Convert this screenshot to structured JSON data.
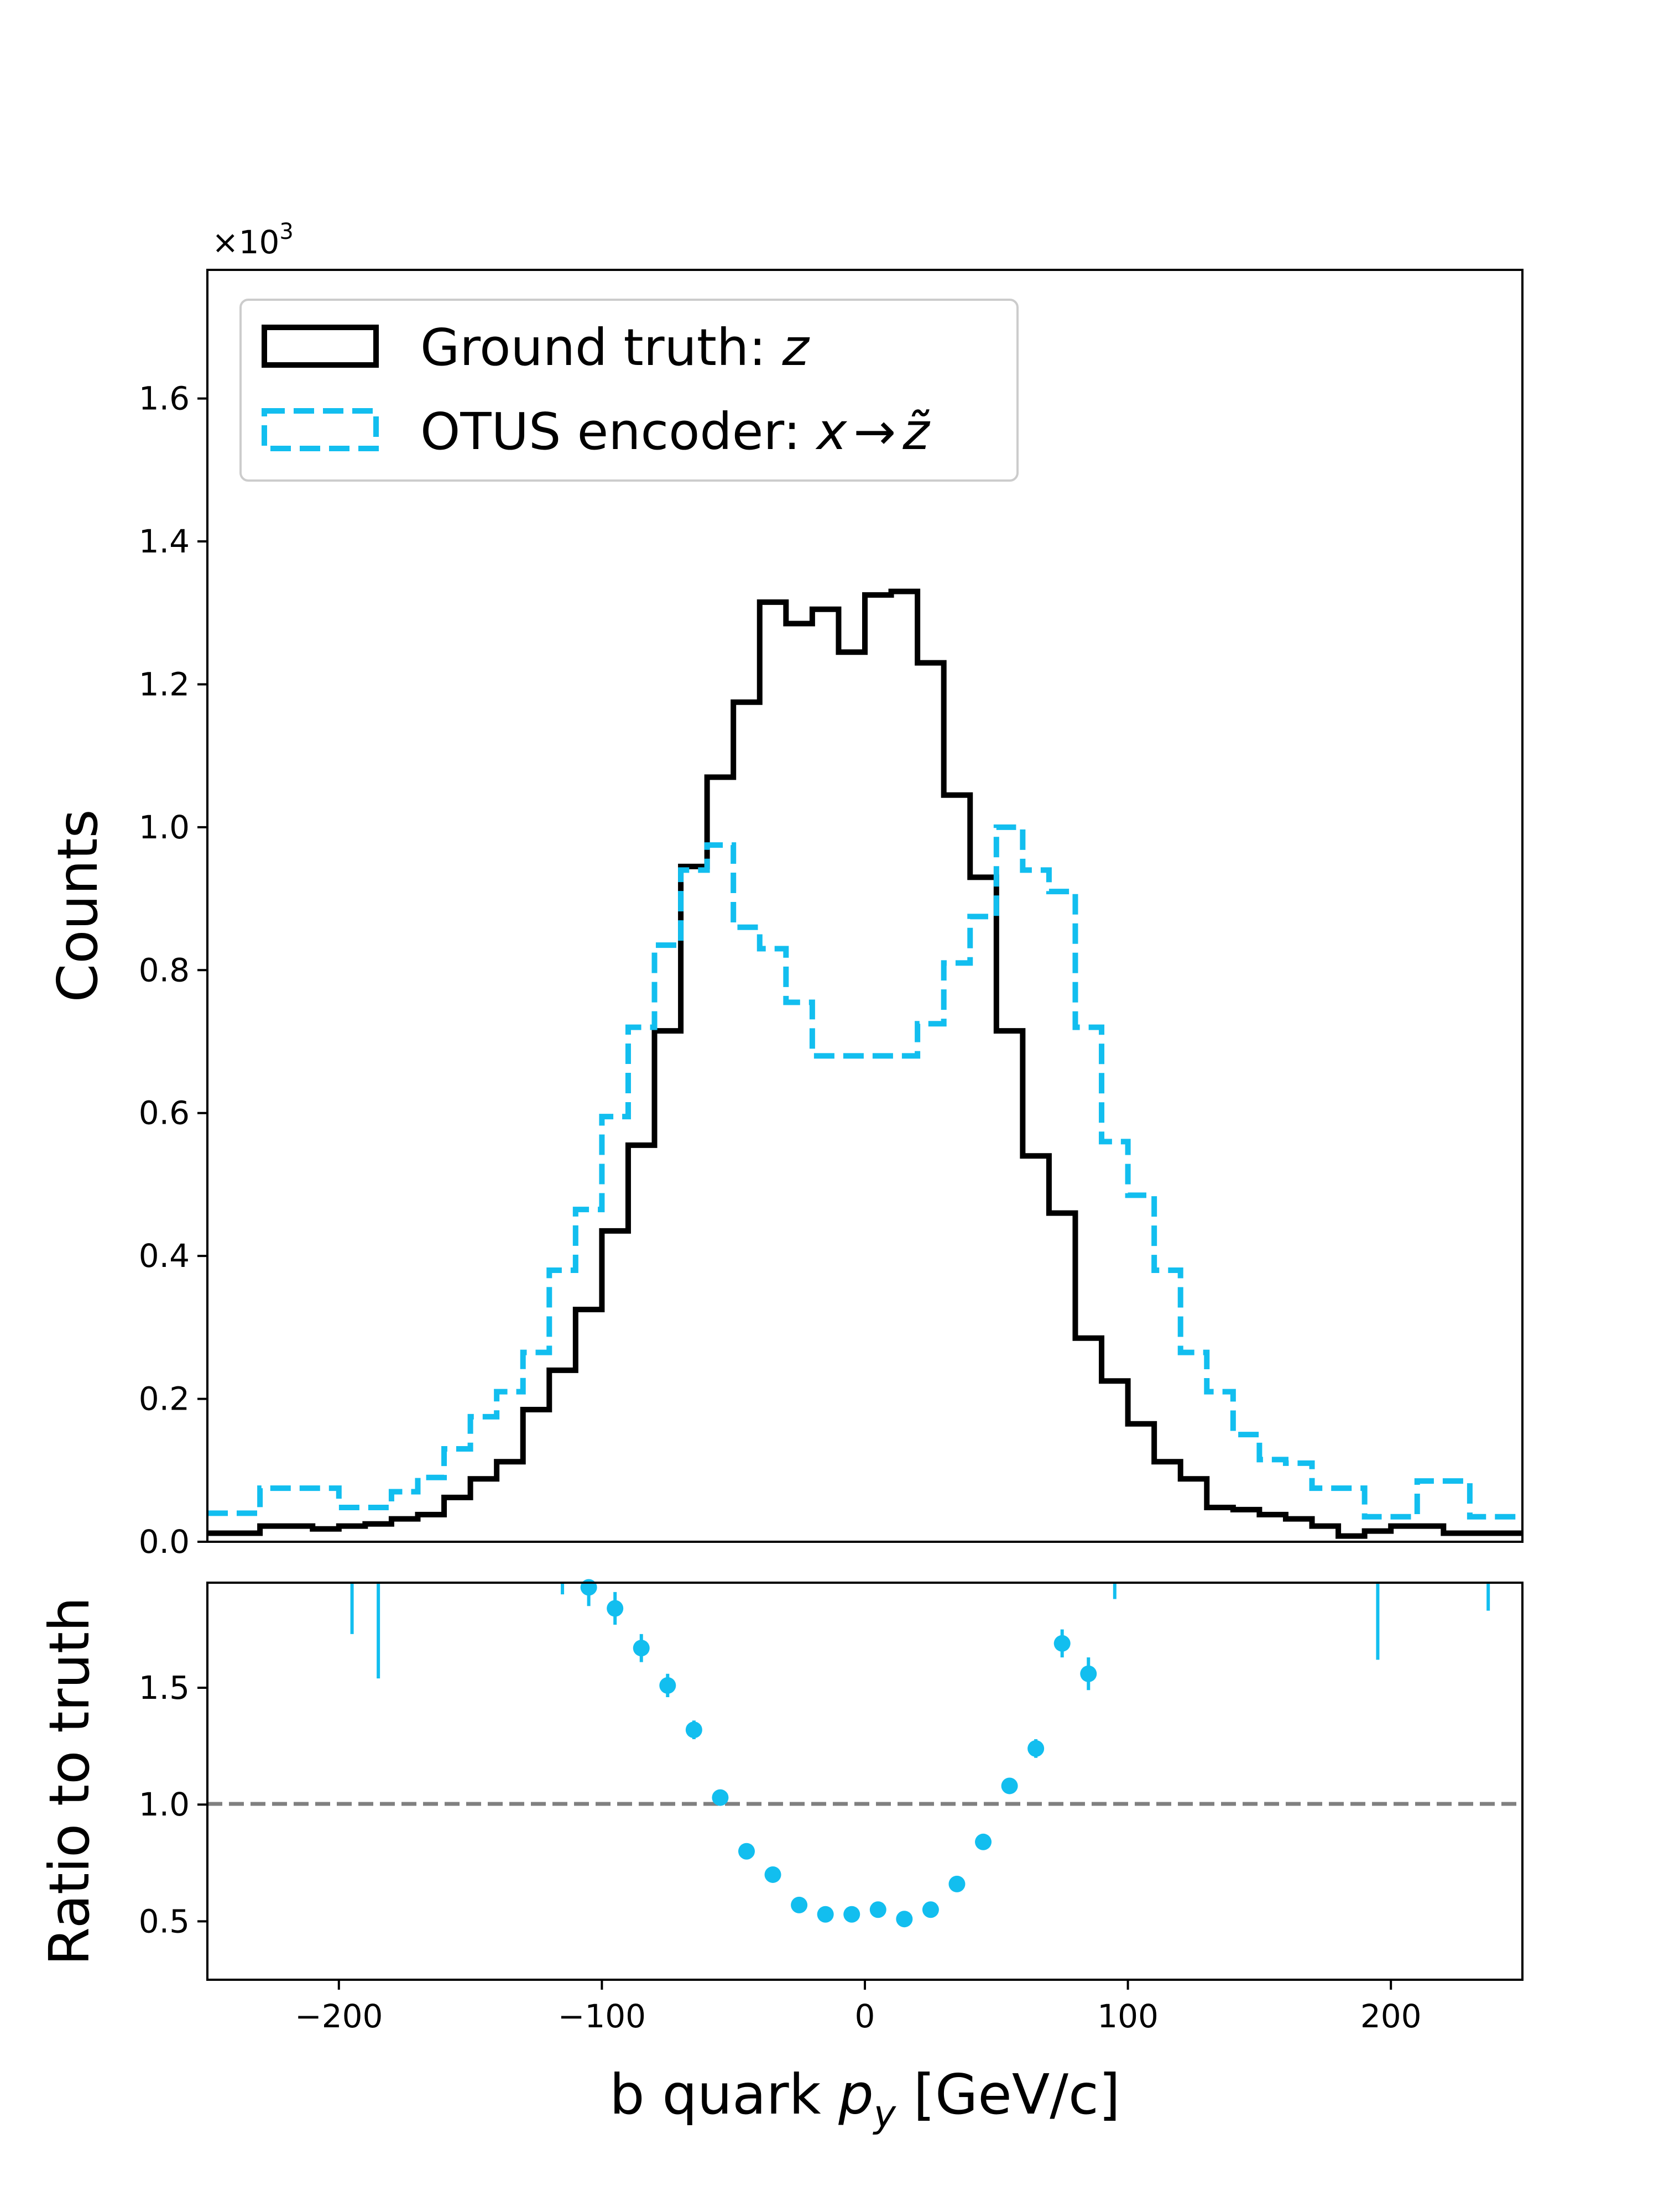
{
  "chart_data": [
    {
      "type": "histogram",
      "panel": "main",
      "ylabel": "Counts",
      "y_multiplier_label": "×10³",
      "xlim": [
        -250,
        250
      ],
      "ylim": [
        0,
        1.78
      ],
      "y_ticks": [
        "0.0",
        "0.2",
        "0.4",
        "0.6",
        "0.8",
        "1.0",
        "1.2",
        "1.4",
        "1.6"
      ],
      "grid": false,
      "legend": "top-left",
      "bin_edges": [
        -250,
        -240,
        -230,
        -220,
        -210,
        -200,
        -190,
        -180,
        -170,
        -160,
        -150,
        -140,
        -130,
        -120,
        -110,
        -100,
        -90,
        -80,
        -70,
        -60,
        -50,
        -40,
        -30,
        -20,
        -10,
        0,
        10,
        20,
        30,
        40,
        50,
        60,
        70,
        80,
        90,
        100,
        110,
        120,
        130,
        140,
        150,
        160,
        170,
        180,
        190,
        200,
        210,
        220,
        230,
        240,
        250
      ],
      "series": [
        {
          "name": "Ground truth: z",
          "style": "solid",
          "color": "#000000",
          "values": [
            0.012,
            0.012,
            0.022,
            0.022,
            0.018,
            0.022,
            0.025,
            0.032,
            0.038,
            0.062,
            0.088,
            0.112,
            0.185,
            0.24,
            0.325,
            0.435,
            0.555,
            0.715,
            0.945,
            1.07,
            1.175,
            1.315,
            1.285,
            1.305,
            1.245,
            1.325,
            1.33,
            1.23,
            1.045,
            0.93,
            0.715,
            0.54,
            0.46,
            0.285,
            0.225,
            0.165,
            0.112,
            0.088,
            0.048,
            0.045,
            0.038,
            0.032,
            0.022,
            0.008,
            0.015,
            0.022,
            0.022,
            0.012,
            0.012,
            0.012
          ]
        },
        {
          "name": "OTUS encoder: x → z̃",
          "style": "dashed",
          "color": "#12beef",
          "values": [
            0.04,
            0.04,
            0.075,
            0.075,
            0.075,
            0.048,
            0.048,
            0.07,
            0.09,
            0.13,
            0.175,
            0.21,
            0.265,
            0.38,
            0.465,
            0.595,
            0.72,
            0.835,
            0.94,
            0.975,
            0.86,
            0.83,
            0.755,
            0.68,
            0.68,
            0.68,
            0.68,
            0.725,
            0.81,
            0.875,
            1.0,
            0.94,
            0.91,
            0.72,
            0.56,
            0.485,
            0.38,
            0.265,
            0.21,
            0.15,
            0.115,
            0.11,
            0.075,
            0.075,
            0.035,
            0.035,
            0.085,
            0.085,
            0.035,
            0.035
          ]
        }
      ]
    },
    {
      "type": "scatter",
      "panel": "ratio",
      "xlabel": "b quark p_y [GeV/c]",
      "ylabel": "Ratio to truth",
      "xlim": [
        -250,
        250
      ],
      "ylim": [
        0.25,
        1.95
      ],
      "x_ticks": [
        -200,
        -100,
        0,
        100,
        200
      ],
      "y_ticks": [
        "0.5",
        "1.0",
        "1.5"
      ],
      "reference_line": 1.0,
      "color": "#12beef",
      "points": [
        {
          "x": -105,
          "y": 1.93,
          "err": 0.08
        },
        {
          "x": -95,
          "y": 1.84,
          "err": 0.07
        },
        {
          "x": -85,
          "y": 1.67,
          "err": 0.06
        },
        {
          "x": -75,
          "y": 1.51,
          "err": 0.05
        },
        {
          "x": -65,
          "y": 1.32,
          "err": 0.04
        },
        {
          "x": -55,
          "y": 1.03,
          "err": 0.02
        },
        {
          "x": -45,
          "y": 0.8,
          "err": 0.015
        },
        {
          "x": -35,
          "y": 0.7,
          "err": 0.01
        },
        {
          "x": -25,
          "y": 0.57,
          "err": 0.01
        },
        {
          "x": -15,
          "y": 0.53,
          "err": 0.01
        },
        {
          "x": -5,
          "y": 0.53,
          "err": 0.01
        },
        {
          "x": 5,
          "y": 0.55,
          "err": 0.01
        },
        {
          "x": 15,
          "y": 0.51,
          "err": 0.01
        },
        {
          "x": 25,
          "y": 0.55,
          "err": 0.01
        },
        {
          "x": 35,
          "y": 0.66,
          "err": 0.01
        },
        {
          "x": 45,
          "y": 0.84,
          "err": 0.015
        },
        {
          "x": 55,
          "y": 1.08,
          "err": 0.02
        },
        {
          "x": 65,
          "y": 1.24,
          "err": 0.04
        },
        {
          "x": 75,
          "y": 1.69,
          "err": 0.06
        },
        {
          "x": 85,
          "y": 1.56,
          "err": 0.07
        }
      ],
      "offscale_bars": [
        {
          "x": -195,
          "y_low": 1.73
        },
        {
          "x": -185,
          "y_low": 1.54
        },
        {
          "x": -115,
          "y_low": 1.9
        },
        {
          "x": 95,
          "y_low": 1.88
        },
        {
          "x": 195,
          "y_low": 1.62
        },
        {
          "x": 237,
          "y_low": 1.83
        }
      ]
    }
  ],
  "legend": {
    "entry1": "Ground truth: ",
    "entry1_var": "z",
    "entry2": "OTUS encoder: ",
    "entry2_var": "x",
    "entry2_arrow": "→",
    "entry2_target": "z̃"
  }
}
